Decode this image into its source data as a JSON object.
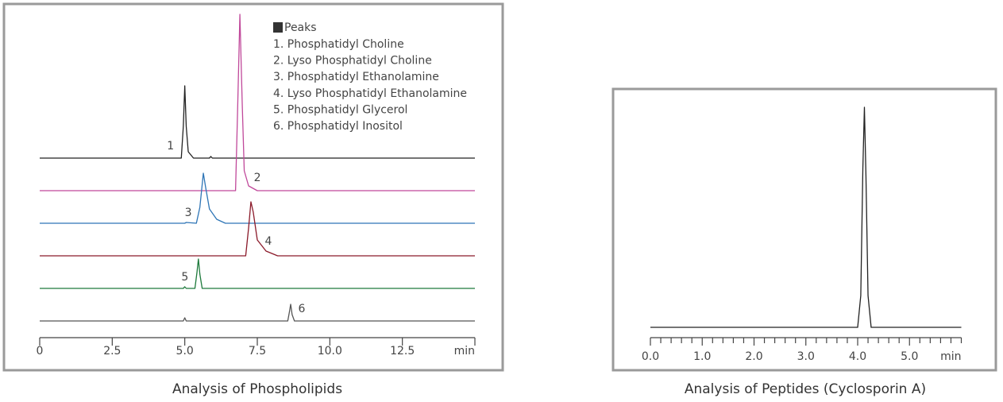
{
  "chart_data": [
    {
      "type": "line",
      "title": "Analysis of Phospholipids",
      "x_label": "min",
      "legend_title": "Peaks",
      "xlim": [
        0,
        15
      ],
      "xticks": [
        0,
        2.5,
        {
          "value": 5,
          "label": "5.0"
        },
        7.5,
        {
          "value": 10,
          "label": "10.0"
        },
        12.5
      ],
      "series": [
        {
          "name": "1. Phosphatidyl Choline",
          "peak_label": "1",
          "color": "#222222",
          "x": [
            0,
            4.88,
            4.95,
            5.0,
            5.05,
            5.12,
            5.3,
            5.85,
            5.9,
            5.95,
            15
          ],
          "values": [
            0,
            0,
            40,
            91,
            40,
            8,
            0,
            0,
            2,
            0,
            0
          ]
        },
        {
          "name": "2. Lyso Phosphatidyl Choline",
          "peak_label": "2",
          "color": "#c0489a",
          "x": [
            0,
            6.75,
            6.82,
            6.9,
            6.98,
            7.05,
            7.2,
            7.5,
            15
          ],
          "values": [
            0,
            0,
            100,
            222,
            110,
            25,
            6,
            0,
            0
          ]
        },
        {
          "name": "3. Phosphatidyl Ethanolamine",
          "peak_label": "3",
          "color": "#2e75b6",
          "x": [
            0,
            5.0,
            5.05,
            5.4,
            5.52,
            5.64,
            5.72,
            5.85,
            6.1,
            6.4,
            15
          ],
          "values": [
            0,
            0,
            1,
            0,
            20,
            63,
            45,
            18,
            5,
            0,
            0
          ]
        },
        {
          "name": "4. Lyso Phosphatidyl Ethanolamine",
          "peak_label": "4",
          "color": "#8b1a2a",
          "x": [
            0,
            7.1,
            7.2,
            7.28,
            7.36,
            7.5,
            7.8,
            8.2,
            15
          ],
          "values": [
            0,
            0,
            35,
            68,
            55,
            20,
            6,
            0,
            0
          ]
        },
        {
          "name": "5. Phosphatidyl Glycerol",
          "peak_label": "5",
          "color": "#1e7a3c",
          "x": [
            0,
            4.95,
            5.0,
            5.05,
            5.35,
            5.42,
            5.47,
            5.52,
            5.6,
            15
          ],
          "values": [
            0,
            0,
            2,
            0,
            0,
            20,
            37,
            18,
            0,
            0
          ]
        },
        {
          "name": "6. Phosphatidyl Inositol",
          "peak_label": "6",
          "color": "#555555",
          "x": [
            0,
            4.95,
            5.0,
            5.05,
            8.55,
            8.61,
            8.65,
            8.7,
            8.78,
            15
          ],
          "values": [
            0,
            0,
            4,
            0,
            0,
            12,
            21,
            8,
            0,
            0
          ]
        }
      ]
    },
    {
      "type": "line",
      "title": "Analysis of Peptides (Cyclosporin A)",
      "x_label": "min",
      "xlim": [
        0,
        6
      ],
      "xticks": [
        {
          "value": 0,
          "label": "0.0"
        },
        {
          "value": 1,
          "label": "1.0"
        },
        {
          "value": 2,
          "label": "2.0"
        },
        {
          "value": 3,
          "label": "3.0"
        },
        {
          "value": 4,
          "label": "4.0"
        },
        {
          "value": 5,
          "label": "5.0"
        }
      ],
      "xminor_ticks": [
        0.2,
        0.4,
        0.6,
        0.8,
        1.2,
        1.4,
        1.6,
        1.8,
        2.2,
        2.4,
        2.6,
        2.8,
        3.2,
        3.4,
        3.6,
        3.8,
        4.2,
        4.4,
        4.6,
        4.8,
        5.2,
        5.4,
        5.6,
        5.8,
        6.0
      ],
      "series": [
        {
          "color": "#222222",
          "x": [
            0,
            4.0,
            4.06,
            4.1,
            4.13,
            4.16,
            4.2,
            4.26,
            6
          ],
          "values": [
            0,
            0,
            40,
            200,
            277,
            190,
            40,
            0,
            0
          ]
        }
      ]
    }
  ]
}
